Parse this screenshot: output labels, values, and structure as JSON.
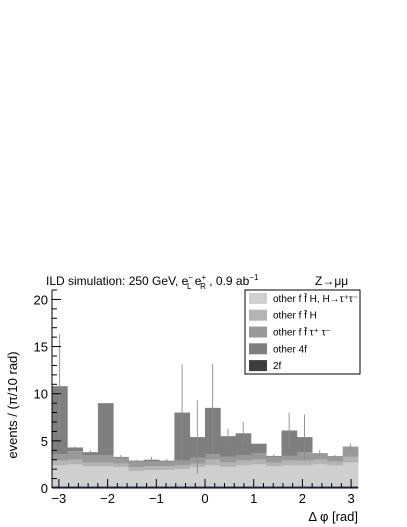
{
  "chart_data": {
    "type": "stacked-histogram",
    "header": {
      "left": "ILD simulation: 250 GeV, e",
      "left_sup1": "−",
      "left_sub1": "L",
      "left_mid": " e",
      "left_sup2": "+",
      "left_sub2": "R",
      "left_tail": " , 0.9 ab",
      "left_sup3": "−1",
      "right": "Z→μμ"
    },
    "xlabel": "Δ φ [rad]",
    "ylabel": "events / (π/10 rad)",
    "xlim": [
      -3.1416,
      3.1416
    ],
    "ylim": [
      0,
      21
    ],
    "xticks": [
      -3,
      -2,
      -1,
      0,
      1,
      2,
      3
    ],
    "yticks": [
      0,
      5,
      10,
      15,
      20
    ],
    "bin_edges": [
      -3.1416,
      -2.8274,
      -2.5133,
      -2.1991,
      -1.885,
      -1.5708,
      -1.2566,
      -0.9425,
      -0.6283,
      -0.3142,
      0.0,
      0.3142,
      0.6283,
      0.9425,
      1.2566,
      1.5708,
      1.885,
      2.1991,
      2.5133,
      2.8274,
      3.1416
    ],
    "series": [
      {
        "name": "2f",
        "color": "#3d3d3d",
        "values": [
          0.1,
          0.1,
          0.1,
          0.1,
          0.1,
          0.1,
          0.1,
          0.1,
          0.1,
          0.1,
          0.1,
          0.1,
          0.1,
          0.1,
          0.1,
          0.1,
          0.1,
          0.1,
          0.1,
          0.1
        ]
      },
      {
        "name": "other f f̄ H, H→τ⁺τ⁻",
        "color": "#cfcfcf",
        "values": [
          2.3,
          2.4,
          2.2,
          2.2,
          2.1,
          1.7,
          1.8,
          1.8,
          1.9,
          2.1,
          2.3,
          2.1,
          2.3,
          2.4,
          2.2,
          2.3,
          2.3,
          2.4,
          2.3,
          2.6
        ]
      },
      {
        "name": "other f f̄ H",
        "color": "#b4b4b4",
        "values": [
          0.5,
          0.5,
          0.4,
          0.4,
          0.4,
          0.4,
          0.4,
          0.4,
          0.4,
          0.4,
          0.6,
          0.5,
          0.5,
          0.5,
          0.4,
          0.5,
          0.5,
          0.5,
          0.4,
          0.6
        ]
      },
      {
        "name": "other f f̄ τ⁺ τ⁻",
        "color": "#999999",
        "values": [
          0.7,
          0.9,
          0.8,
          0.8,
          0.6,
          0.6,
          0.5,
          0.5,
          0.5,
          0.6,
          0.6,
          0.6,
          0.6,
          0.7,
          0.6,
          0.5,
          0.9,
          0.7,
          0.6,
          1.1
        ]
      },
      {
        "name": "other 4f",
        "color": "#7f7f7f",
        "values": [
          7.2,
          0.4,
          0.3,
          5.5,
          0.1,
          0.1,
          0.2,
          0.1,
          5.1,
          2.2,
          4.9,
          2.2,
          2.3,
          1.0,
          0.1,
          2.7,
          1.6,
          0.0,
          0.0,
          0.0
        ]
      }
    ],
    "error_bar_tops": [
      16.3,
      4.2,
      3.6,
      9.0,
      3.1,
      3.0,
      2.7,
      2.7,
      13.1,
      9.3,
      13.2,
      6.3,
      7.0,
      4.7,
      3.2,
      8.0,
      7.8,
      3.4,
      3.5,
      4.7
    ],
    "legend": {
      "placement": "top-right",
      "entries": [
        {
          "label": "other f f̄ H, H→τ⁺τ⁻",
          "color": "#cfcfcf"
        },
        {
          "label": "other f f̄ H",
          "color": "#b4b4b4"
        },
        {
          "label": "other f f̄ τ⁺ τ⁻",
          "color": "#999999"
        },
        {
          "label": "other 4f",
          "color": "#7f7f7f"
        },
        {
          "label": "2f",
          "color": "#3d3d3d"
        }
      ]
    },
    "grid": false
  }
}
